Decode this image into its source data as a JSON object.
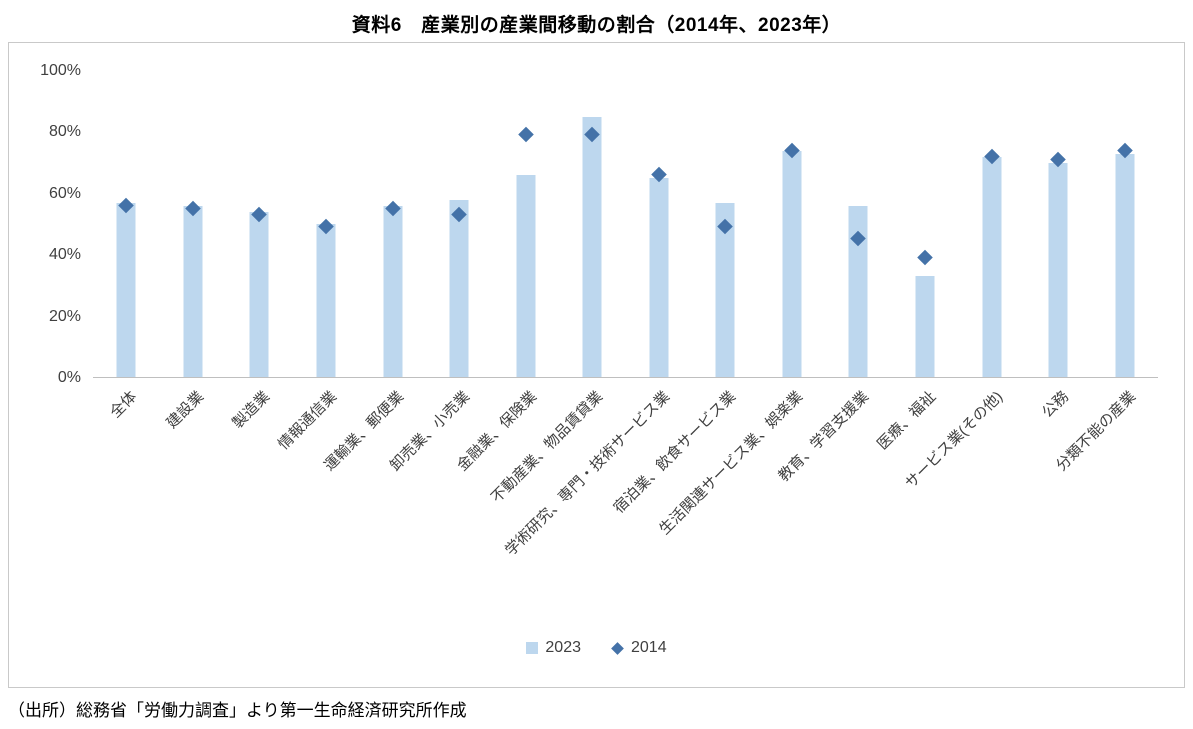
{
  "chart_data": {
    "type": "bar",
    "title": "資料6　産業別の産業間移動の割合（2014年、2023年）",
    "categories": [
      "全体",
      "建設業",
      "製造業",
      "情報通信業",
      "運輸業、郵便業",
      "卸売業、小売業",
      "金融業、保険業",
      "不動産業、物品賃貸業",
      "学術研究、専門・技術サービス業",
      "宿泊業、飲食サービス業",
      "生活関連サービス業、娯楽業",
      "教育、学習支援業",
      "医療、福祉",
      "サービス業(その他)",
      "公務",
      "分類不能の産業"
    ],
    "series": [
      {
        "name": "2023",
        "type": "bar",
        "color": "#bdd7ee",
        "values": [
          57,
          56,
          54,
          50,
          56,
          58,
          66,
          85,
          65,
          57,
          74,
          56,
          33,
          72,
          70,
          73
        ]
      },
      {
        "name": "2014",
        "type": "scatter-diamond",
        "color": "#4472a8",
        "values": [
          57,
          56,
          54,
          50,
          56,
          54,
          80,
          80,
          67,
          50,
          75,
          46,
          40,
          73,
          72,
          75
        ]
      }
    ],
    "ylim": [
      0,
      100
    ],
    "yticks": [
      "0%",
      "20%",
      "40%",
      "60%",
      "80%",
      "100%"
    ],
    "ytick_values": [
      0,
      20,
      40,
      60,
      80,
      100
    ],
    "legend_position": "bottom",
    "grid": false
  },
  "source": "（出所）総務省「労働力調査」より第一生命経済研究所作成"
}
